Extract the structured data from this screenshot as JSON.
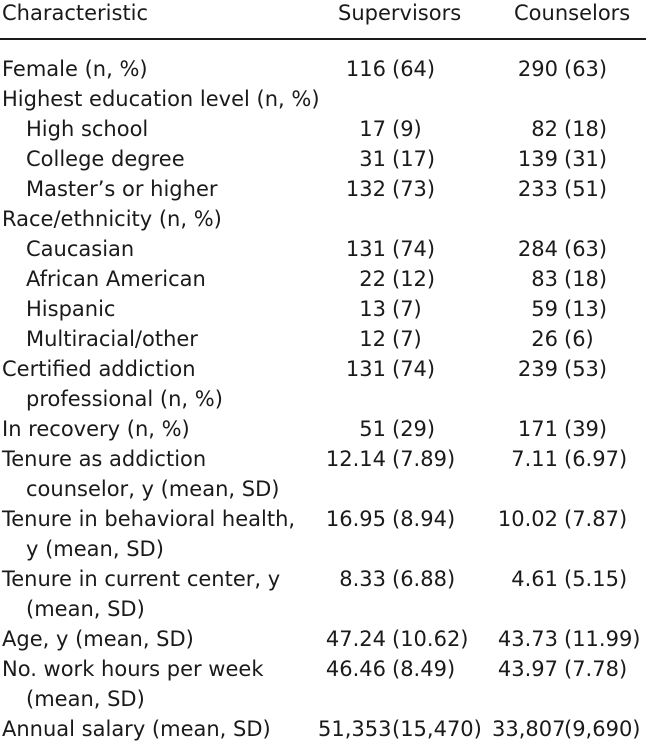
{
  "header": {
    "characteristic": "Characteristic",
    "supervisors": "Supervisors",
    "counselors": "Counselors"
  },
  "rows": [
    {
      "label": [
        "Female (n, %)"
      ],
      "indent": false,
      "sup": {
        "n": "116",
        "p": "(64)"
      },
      "cou": {
        "n": "290",
        "p": "(63)"
      }
    },
    {
      "label": [
        "Highest education level (n, %)"
      ],
      "indent": false,
      "sup": null,
      "cou": null
    },
    {
      "label": [
        "High school"
      ],
      "indent": true,
      "sup": {
        "n": "17",
        "p": "(9)"
      },
      "cou": {
        "n": "82",
        "p": "(18)"
      }
    },
    {
      "label": [
        "College degree"
      ],
      "indent": true,
      "sup": {
        "n": "31",
        "p": "(17)"
      },
      "cou": {
        "n": "139",
        "p": "(31)"
      }
    },
    {
      "label": [
        "Master’s or higher"
      ],
      "indent": true,
      "sup": {
        "n": "132",
        "p": "(73)"
      },
      "cou": {
        "n": "233",
        "p": "(51)"
      }
    },
    {
      "label": [
        "Race/ethnicity (n, %)"
      ],
      "indent": false,
      "sup": null,
      "cou": null
    },
    {
      "label": [
        "Caucasian"
      ],
      "indent": true,
      "sup": {
        "n": "131",
        "p": "(74)"
      },
      "cou": {
        "n": "284",
        "p": "(63)"
      }
    },
    {
      "label": [
        "African American"
      ],
      "indent": true,
      "sup": {
        "n": "22",
        "p": "(12)"
      },
      "cou": {
        "n": "83",
        "p": "(18)"
      }
    },
    {
      "label": [
        "Hispanic"
      ],
      "indent": true,
      "sup": {
        "n": "13",
        "p": "(7)"
      },
      "cou": {
        "n": "59",
        "p": "(13)"
      }
    },
    {
      "label": [
        "Multiracial/other"
      ],
      "indent": true,
      "sup": {
        "n": "12",
        "p": "(7)"
      },
      "cou": {
        "n": "26",
        "p": "(6)"
      }
    },
    {
      "label": [
        "Certified addiction",
        "professional (n, %)"
      ],
      "indent": false,
      "sup": {
        "n": "131",
        "p": "(74)"
      },
      "cou": {
        "n": "239",
        "p": "(53)"
      }
    },
    {
      "label": [
        "In recovery (n, %)"
      ],
      "indent": false,
      "sup": {
        "n": "51",
        "p": "(29)"
      },
      "cou": {
        "n": "171",
        "p": "(39)"
      }
    },
    {
      "label": [
        "Tenure as addiction",
        "counselor, y (mean, SD)"
      ],
      "indent": false,
      "sup": {
        "n": "12.14",
        "p": "(7.89)"
      },
      "cou": {
        "n": "7.11",
        "p": "(6.97)"
      }
    },
    {
      "label": [
        "Tenure in behavioral health,",
        "y (mean, SD)"
      ],
      "indent": false,
      "sup": {
        "n": "16.95",
        "p": "(8.94)"
      },
      "cou": {
        "n": "10.02",
        "p": "(7.87)"
      }
    },
    {
      "label": [
        "Tenure in current center, y",
        "(mean, SD)"
      ],
      "indent": false,
      "sup": {
        "n": "8.33",
        "p": "(6.88)"
      },
      "cou": {
        "n": "4.61",
        "p": "(5.15)"
      }
    },
    {
      "label": [
        "Age, y (mean, SD)"
      ],
      "indent": false,
      "sup": {
        "n": "47.24",
        "p": "(10.62)"
      },
      "cou": {
        "n": "43.73",
        "p": "(11.99)"
      }
    },
    {
      "label": [
        "No. work hours per week",
        "(mean, SD)"
      ],
      "indent": false,
      "sup": {
        "n": "46.46",
        "p": "(8.49)"
      },
      "cou": {
        "n": "43.97",
        "p": "(7.78)"
      }
    },
    {
      "label": [
        "Annual salary (mean, SD)"
      ],
      "indent": false,
      "sup": {
        "n": "51,353",
        "p": "(15,470)"
      },
      "cou": {
        "n": "33,807",
        "p": "(9,690)"
      }
    }
  ]
}
